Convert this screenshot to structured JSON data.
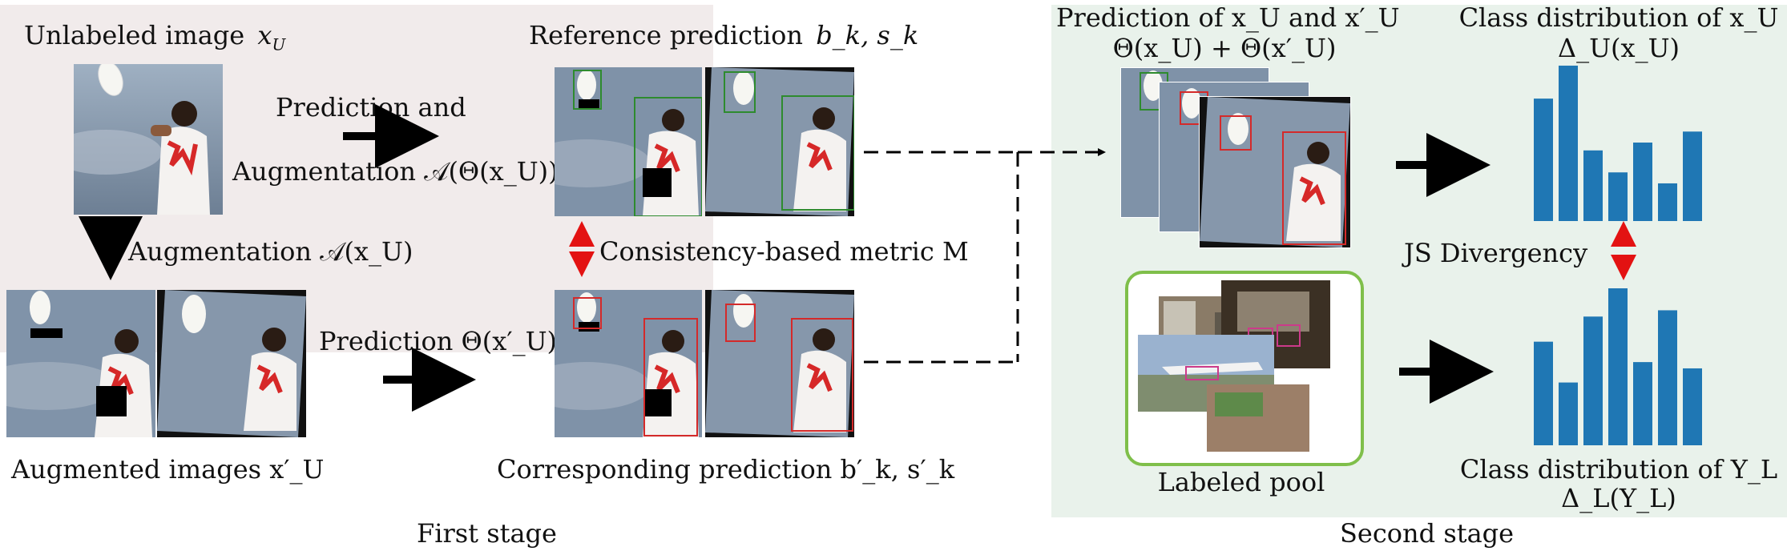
{
  "first_stage": {
    "caption": "First stage",
    "unlabeled_image_label": "Unlabeled image x_U",
    "unlabeled_prefix": "Unlabeled image",
    "unlabeled_var": "x",
    "unlabeled_sub": "U",
    "reference_label_prefix": "Reference prediction",
    "reference_label_vars": "b_k, s_k",
    "prediction_and_label": "Prediction  and",
    "augmentation_theta_label": "Augmentation 𝒜(Θ(x_U))",
    "augmentation_label": "Augmentation 𝒜(x_U)",
    "consistency_label": "Consistency-based metric M",
    "prediction_theta_label": "Prediction Θ(x′_U)",
    "augmented_images_label": "Augmented images x′_U",
    "corresponding_label": "Corresponding prediction b′_k, s′_k"
  },
  "second_stage": {
    "caption": "Second stage",
    "prediction_of_label_line1": "Prediction of x_U and x′_U",
    "prediction_of_label_line2": "Θ(x_U) + Θ(x′_U)",
    "class_dist_unlabeled_line1": "Class distribution of x_U",
    "class_dist_unlabeled_line2": "Δ_U(x_U)",
    "js_label": "JS Divergency",
    "labeled_pool_label": "Labeled pool",
    "class_dist_labeled_line1": "Class distribution of Y_L",
    "class_dist_labeled_line2": "Δ_L(Y_L)",
    "hist_unlabeled": [
      0.78,
      0.99,
      0.45,
      0.31,
      0.5,
      0.24,
      0.57
    ],
    "hist_labeled": [
      0.66,
      0.4,
      0.82,
      1.0,
      0.53,
      0.86,
      0.49
    ]
  },
  "colors": {
    "first_stage_bg": "#f1ebeb",
    "second_stage_bg": "#e9f2eb",
    "bar_color": "#1f77b4",
    "reference_box": "#2e8b2e",
    "corresponding_box": "#d42a2a",
    "pool_border": "#7fbf4a",
    "double_arrow": "#e31212"
  }
}
